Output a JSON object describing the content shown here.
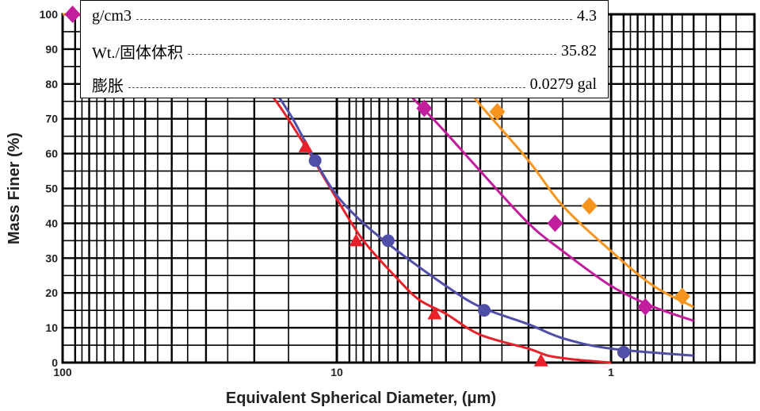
{
  "chart_data": {
    "type": "line",
    "xlabel": "Equivalent Spherical Diameter, (μm)",
    "ylabel": "Mass Finer (%)",
    "x_scale": "log",
    "x_reversed": true,
    "xlim": [
      100,
      0.3
    ],
    "ylim": [
      0,
      100
    ],
    "x_ticks": [
      100,
      10,
      1
    ],
    "x_tick_labels": [
      "100",
      "10",
      "1"
    ],
    "y_ticks": [
      0,
      10,
      20,
      30,
      40,
      50,
      60,
      70,
      80,
      90,
      100
    ],
    "y_tick_labels": [
      "0",
      "10",
      "20",
      "30",
      "40",
      "50",
      "60",
      "70",
      "80",
      "90",
      "100"
    ],
    "grid": true,
    "series": [
      {
        "color": "#e8202a",
        "marker": "triangle",
        "x": [
          100,
          50,
          25,
          17,
          13,
          10,
          8,
          6,
          5,
          4,
          3,
          2,
          1.7,
          1.4,
          1.2,
          1
        ],
        "y": [
          100,
          99,
          92,
          76,
          62,
          47,
          35,
          24,
          18,
          14,
          8,
          4,
          2,
          1,
          0.5,
          0
        ],
        "marker_x": [
          54,
          26,
          13,
          8.5,
          4.4,
          1.8
        ],
        "marker_y": [
          99,
          89,
          62,
          35,
          14,
          0.5
        ]
      },
      {
        "color": "#4f4fa8",
        "marker": "circle",
        "x": [
          100,
          50,
          30,
          20,
          15,
          12,
          10,
          8,
          6,
          4,
          3,
          2,
          1.5,
          1,
          0.5
        ],
        "y": [
          100,
          99,
          94,
          85,
          72,
          58,
          48,
          40,
          32,
          22,
          16,
          11,
          7,
          4,
          2
        ],
        "marker_x": [
          20,
          12,
          6.5,
          2.9,
          0.9
        ],
        "marker_y": [
          85,
          58,
          35,
          15,
          3
        ]
      },
      {
        "color": "#c21d9c",
        "marker": "diamond",
        "x": [
          100,
          50,
          20,
          10,
          7,
          5,
          4,
          3,
          2,
          1.5,
          1,
          0.7,
          0.5
        ],
        "y": [
          100,
          99,
          98,
          93,
          85,
          74,
          66,
          55,
          40,
          32,
          22,
          16,
          12
        ],
        "marker_x": [
          92,
          11,
          4.8,
          1.6,
          0.75
        ],
        "marker_y": [
          100,
          95,
          73,
          40,
          16
        ]
      },
      {
        "color": "#f7941d",
        "marker": "diamond",
        "x": [
          100,
          50,
          20,
          10,
          6,
          4,
          3,
          2,
          1.5,
          1,
          0.7,
          0.5
        ],
        "y": [
          100,
          100,
          99,
          98,
          96,
          86,
          74,
          58,
          45,
          32,
          22,
          16
        ],
        "marker_x": [
          54,
          34,
          5.9,
          2.6,
          1.2,
          0.55
        ],
        "marker_y": [
          100,
          100,
          96,
          72,
          45,
          19
        ]
      }
    ]
  },
  "legend_table": {
    "rows": [
      {
        "label": "g/cm3",
        "value": "4.3"
      },
      {
        "label": "Wt./固体体积",
        "value": "35.82"
      },
      {
        "label": "膨胀",
        "value": "0.0279 gal"
      }
    ]
  }
}
